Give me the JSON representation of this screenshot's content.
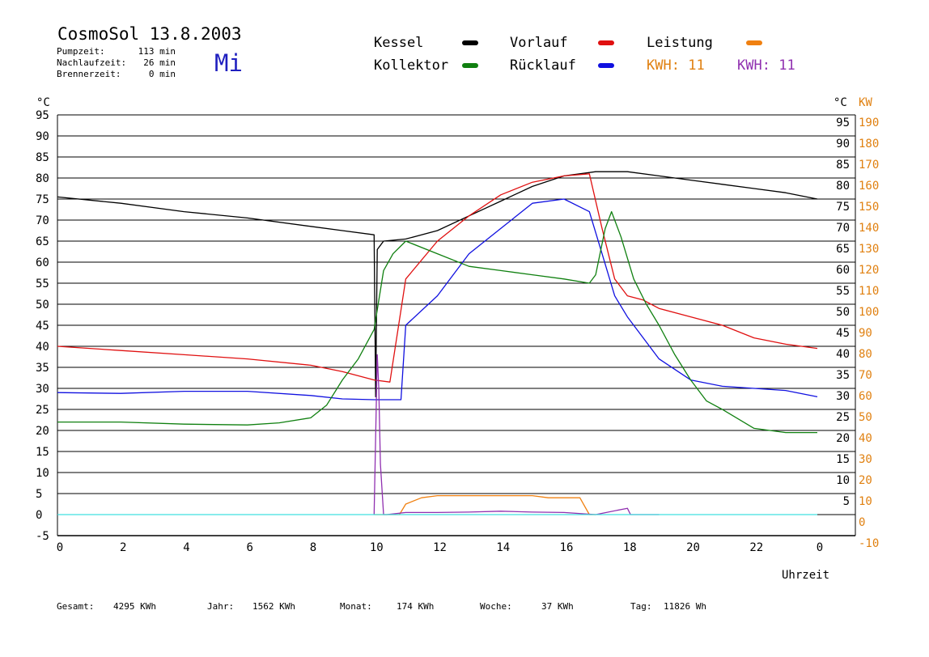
{
  "header": {
    "title": "CosmoSol 13.8.2003",
    "weekday": "Mi",
    "stats": [
      {
        "label": "Pumpzeit:",
        "value": "113 min"
      },
      {
        "label": "Nachlaufzeit:",
        "value": "26 min"
      },
      {
        "label": "Brennerzeit:",
        "value": "0 min"
      }
    ]
  },
  "legend": {
    "kessel": {
      "label": "Kessel",
      "color": "#000000"
    },
    "vorlauf": {
      "label": "Vorlauf",
      "color": "#e01010"
    },
    "leistung": {
      "label": "Leistung",
      "color": "#f08010"
    },
    "kollektor": {
      "label": "Kollektor",
      "color": "#108010"
    },
    "ruecklauf": {
      "label": "Rücklauf",
      "color": "#1010e0"
    },
    "kwh1": {
      "label": "KWH:",
      "value": "11",
      "color": "#e08010"
    },
    "kwh2": {
      "label": "KWH:",
      "value": "11",
      "color": "#9030b0"
    }
  },
  "footer": [
    {
      "label": "Gesamt:",
      "value": "4295 KWh"
    },
    {
      "label": "Jahr:",
      "value": "1562 KWh"
    },
    {
      "label": "Monat:",
      "value": "174 KWh"
    },
    {
      "label": "Woche:",
      "value": "37 KWh"
    },
    {
      "label": "Tag:",
      "value": "11826 Wh"
    }
  ],
  "chart_data": {
    "type": "line",
    "title": "CosmoSol 13.8.2003",
    "xlabel": "Uhrzeit",
    "ylabel_left": "°C",
    "ylabel_right_1": "°C",
    "ylabel_right_2": "KW",
    "xlim": [
      0,
      24
    ],
    "ylim": [
      -5,
      95
    ],
    "x_ticks": [
      "0",
      "2",
      "4",
      "6",
      "8",
      "10",
      "12",
      "14",
      "16",
      "18",
      "20",
      "22",
      "0"
    ],
    "y_ticks_left": [
      "95",
      "90",
      "85",
      "80",
      "75",
      "70",
      "65",
      "60",
      "55",
      "50",
      "45",
      "40",
      "35",
      "30",
      "25",
      "20",
      "15",
      "10",
      "5",
      "0",
      "-5"
    ],
    "y_ticks_right_c": [
      "95",
      "90",
      "85",
      "80",
      "75",
      "70",
      "65",
      "60",
      "55",
      "50",
      "45",
      "40",
      "35",
      "30",
      "25",
      "20",
      "15",
      "10",
      "5"
    ],
    "y_ticks_right_kw": [
      "190",
      "180",
      "170",
      "160",
      "150",
      "140",
      "130",
      "120",
      "110",
      "100",
      "90",
      "80",
      "70",
      "60",
      "50",
      "40",
      "30",
      "20",
      "10",
      "0",
      "-10"
    ],
    "grid": true,
    "series": [
      {
        "name": "Kessel",
        "color": "#000000",
        "x": [
          0,
          2,
          4,
          6,
          8,
          9,
          10,
          10.05,
          10.1,
          10.2,
          10.3,
          11,
          12,
          13,
          14,
          15,
          16,
          17,
          18,
          19,
          20,
          21,
          22,
          23,
          24
        ],
        "y": [
          75.5,
          74,
          72,
          70.5,
          68.5,
          67.5,
          66.5,
          28,
          63,
          64,
          65,
          65.5,
          67.5,
          71,
          74.5,
          78,
          80.5,
          81.5,
          81.5,
          80.5,
          79.5,
          78.5,
          77.5,
          76.5,
          75
        ]
      },
      {
        "name": "Vorlauf",
        "color": "#e01010",
        "x": [
          0,
          2,
          4,
          6,
          8,
          9,
          10,
          10.5,
          11,
          12,
          13,
          14,
          15,
          16,
          16.8,
          17.2,
          17.6,
          18,
          18.5,
          19,
          20,
          21,
          22,
          23,
          24
        ],
        "y": [
          40,
          39,
          38,
          37,
          35.5,
          34,
          32,
          31.5,
          56,
          65,
          71,
          76,
          79,
          80.5,
          81,
          68,
          56,
          52,
          51,
          49,
          47,
          45,
          42,
          40.5,
          39.5
        ]
      },
      {
        "name": "Rücklauf",
        "color": "#1010e0",
        "x": [
          0,
          2,
          4,
          6,
          8,
          9,
          10,
          10.5,
          10.85,
          11,
          12,
          13,
          14,
          15,
          16,
          16.8,
          17.2,
          17.6,
          18,
          19,
          20,
          21,
          22,
          23,
          24
        ],
        "y": [
          29,
          28.8,
          29.3,
          29.3,
          28.3,
          27.5,
          27.3,
          27.3,
          27.3,
          45,
          52,
          62,
          68,
          74,
          75,
          72,
          62,
          52,
          47,
          37,
          32,
          30.5,
          30,
          29.5,
          28
        ]
      },
      {
        "name": "Kollektor",
        "color": "#108010",
        "x": [
          0,
          2,
          4,
          6,
          7,
          8,
          8.5,
          9,
          9.5,
          10,
          10.3,
          10.6,
          11,
          12,
          13,
          14,
          15,
          16,
          16.8,
          17,
          17.3,
          17.5,
          17.8,
          18.2,
          18.6,
          19,
          19.5,
          20,
          20.5,
          21,
          22,
          23,
          24
        ],
        "y": [
          22,
          22,
          21.5,
          21.3,
          21.8,
          23,
          26,
          32,
          37,
          44,
          58,
          62,
          65,
          62,
          59,
          58,
          57,
          56,
          55,
          57,
          68,
          72,
          66,
          56,
          50,
          45,
          38,
          32,
          27,
          25,
          20.5,
          19.5,
          19.5
        ]
      },
      {
        "name": "Leistung",
        "color": "#f08010",
        "x": [
          10,
          10.8,
          11,
          11.5,
          12,
          12.5,
          13,
          13.5,
          14,
          14.5,
          15,
          15.5,
          16,
          16.5,
          16.8,
          17
        ],
        "y": [
          0,
          0,
          2.5,
          4,
          4.5,
          4.5,
          4.5,
          4.5,
          4.5,
          4.5,
          4.5,
          4,
          4,
          4,
          0,
          0
        ]
      },
      {
        "name": "KWH",
        "color": "#9030b0",
        "x": [
          10,
          10.1,
          10.15,
          10.2,
          10.3,
          10.4,
          11,
          12,
          13,
          14,
          15,
          16,
          17,
          18,
          18.1,
          19
        ],
        "y": [
          0,
          38,
          30,
          12,
          0,
          0,
          0.5,
          0.5,
          0.6,
          0.8,
          0.6,
          0.5,
          0,
          1.5,
          0,
          0
        ]
      },
      {
        "name": "Nulllinie",
        "color": "#40e0e0",
        "x": [
          0,
          24
        ],
        "y": [
          0,
          0
        ]
      }
    ]
  }
}
